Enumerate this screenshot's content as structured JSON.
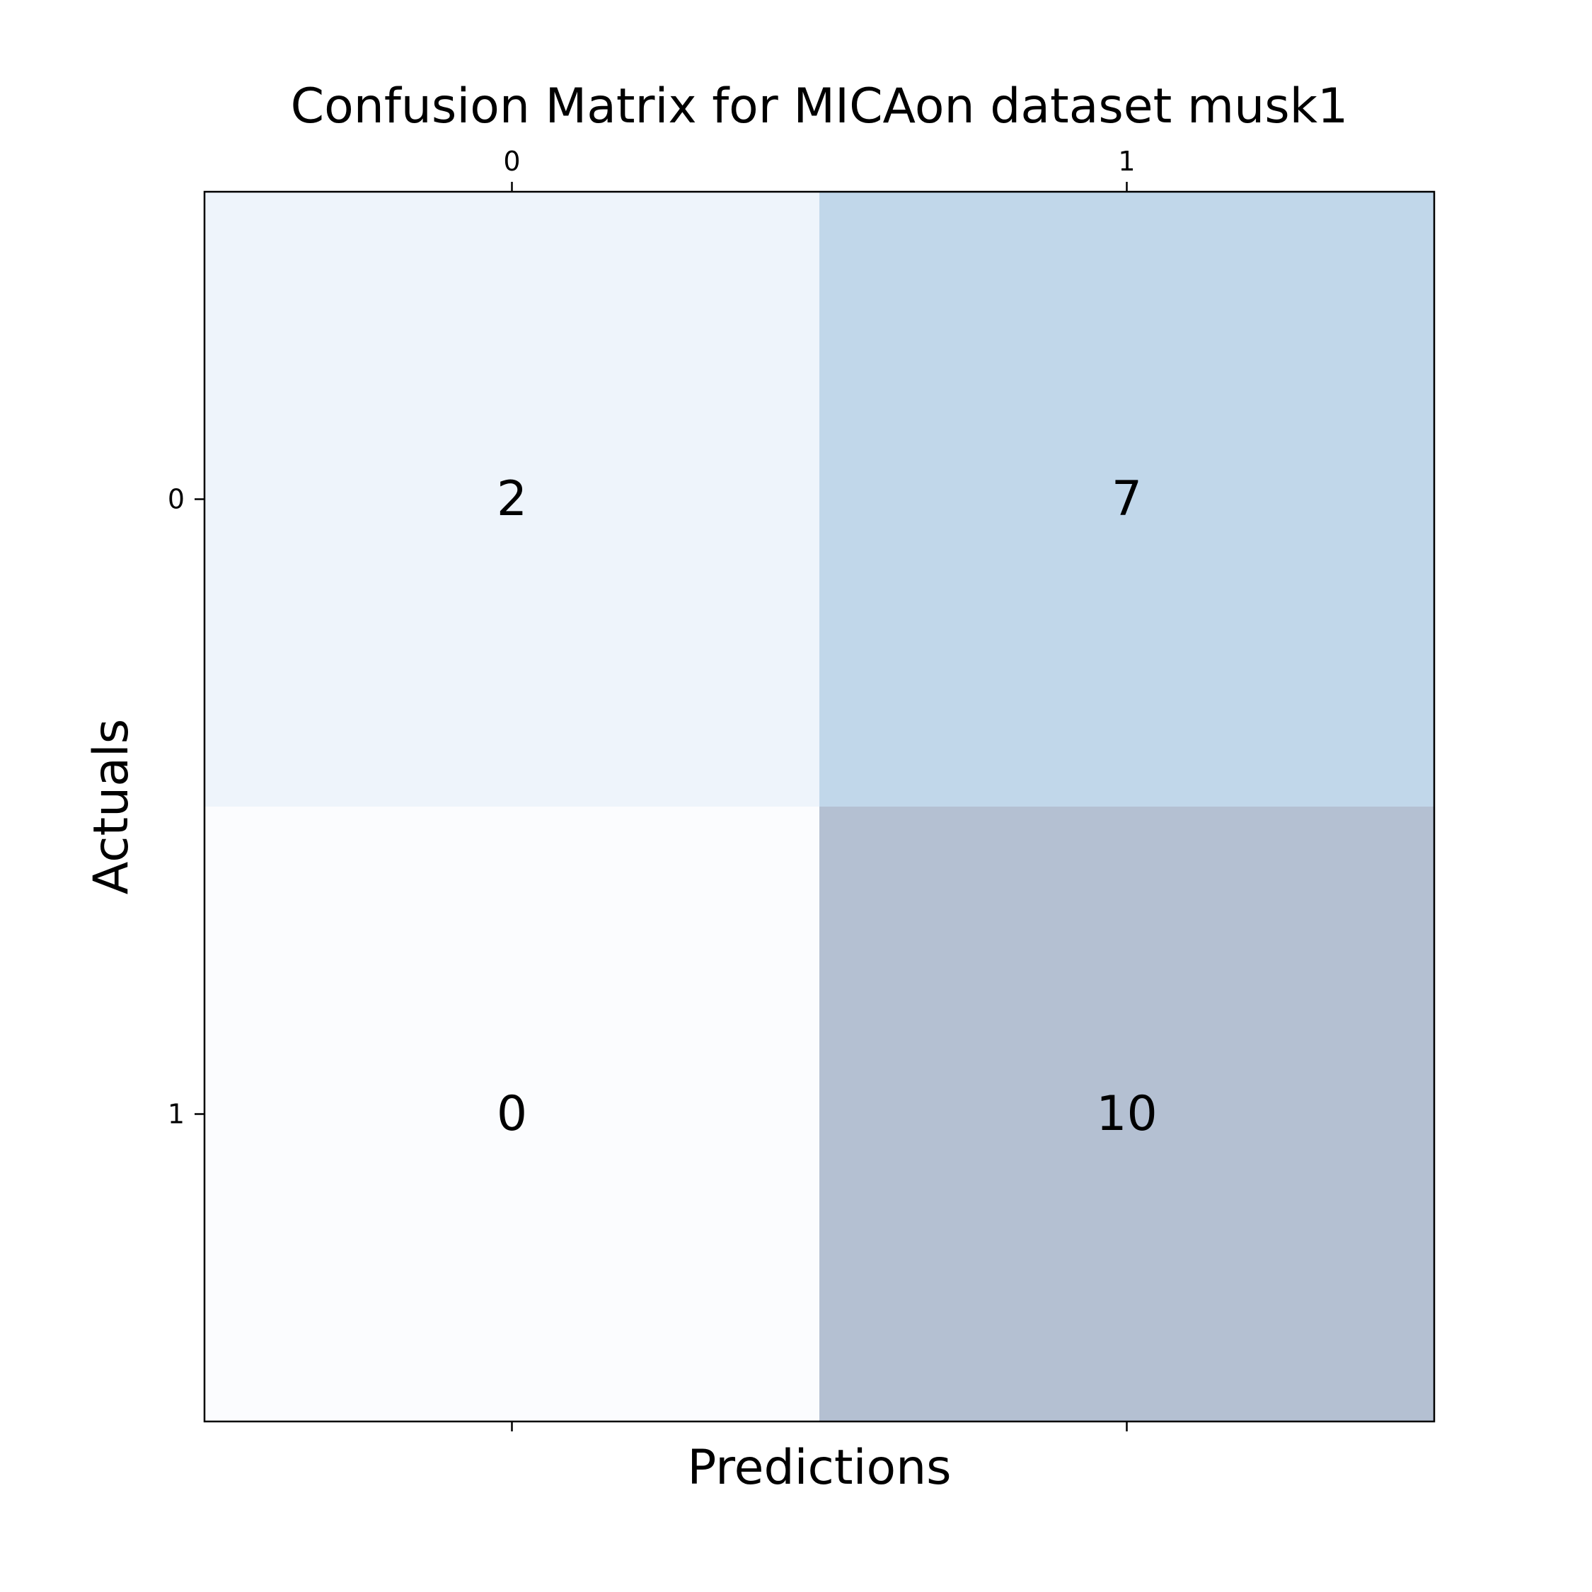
{
  "chart_data": {
    "type": "heatmap",
    "title": "Confusion Matrix for MICAon dataset musk1",
    "xlabel": "Predictions",
    "ylabel": "Actuals",
    "x_categories": [
      "0",
      "1"
    ],
    "y_categories": [
      "0",
      "1"
    ],
    "values": [
      [
        2,
        7
      ],
      [
        0,
        10
      ]
    ],
    "colormap": "Blues",
    "cell_colors": [
      [
        "#eef4fb",
        "#c1d7ea"
      ],
      [
        "#fbfcfe",
        "#b4c0d2"
      ]
    ],
    "x_tick_position": "top-and-bottom",
    "grid": false,
    "legend": "none"
  }
}
